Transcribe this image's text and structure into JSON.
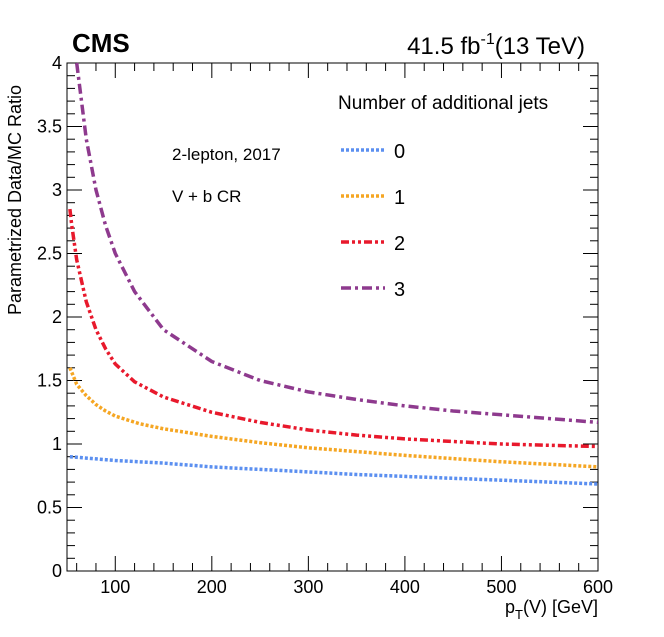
{
  "chart_data": {
    "type": "line",
    "experiment": "CMS",
    "luminosity": {
      "value": "41.5 fb",
      "exponent": "-1",
      "energy": "(13 TeV)"
    },
    "xlabel": {
      "main": "p",
      "sub": "T",
      "rest": "(V) [GeV]"
    },
    "ylabel": "Parametrized Data/MC Ratio",
    "xlim": [
      50,
      600
    ],
    "ylim": [
      0,
      4
    ],
    "xticks": [
      100,
      200,
      300,
      400,
      500,
      600
    ],
    "yticks": [
      0,
      0.5,
      1,
      1.5,
      2,
      2.5,
      3,
      3.5,
      4
    ],
    "annotations": {
      "channel": "2-lepton, 2017",
      "region": "V + b CR"
    },
    "legend_title": "Number of additional jets",
    "series": [
      {
        "name": "0",
        "color": "#5b8ff0",
        "dash": "dot",
        "x": [
          53,
          100,
          150,
          200,
          250,
          300,
          350,
          400,
          450,
          500,
          550,
          600
        ],
        "y": [
          0.9,
          0.87,
          0.85,
          0.82,
          0.8,
          0.78,
          0.76,
          0.745,
          0.73,
          0.715,
          0.7,
          0.685
        ]
      },
      {
        "name": "1",
        "color": "#f5a623",
        "dash": "dot",
        "x": [
          53,
          60,
          70,
          80,
          90,
          100,
          125,
          150,
          200,
          250,
          300,
          350,
          400,
          450,
          500,
          550,
          600
        ],
        "y": [
          1.6,
          1.47,
          1.38,
          1.31,
          1.26,
          1.22,
          1.16,
          1.12,
          1.06,
          1.01,
          0.97,
          0.94,
          0.91,
          0.885,
          0.86,
          0.84,
          0.82
        ]
      },
      {
        "name": "2",
        "color": "#e8192c",
        "dash": "dashdotdot",
        "x": [
          53,
          55,
          60,
          70,
          80,
          90,
          100,
          120,
          150,
          200,
          250,
          300,
          350,
          400,
          450,
          500,
          550,
          600
        ],
        "y": [
          2.85,
          2.72,
          2.45,
          2.12,
          1.9,
          1.75,
          1.63,
          1.49,
          1.37,
          1.25,
          1.17,
          1.11,
          1.07,
          1.04,
          1.02,
          1.0,
          0.99,
          0.98
        ]
      },
      {
        "name": "3",
        "color": "#8e3a8e",
        "dash": "dashdot",
        "x": [
          60,
          65,
          70,
          80,
          90,
          100,
          120,
          150,
          200,
          250,
          300,
          350,
          400,
          450,
          500,
          550,
          600
        ],
        "y": [
          4.0,
          3.7,
          3.4,
          3.0,
          2.72,
          2.5,
          2.2,
          1.9,
          1.65,
          1.5,
          1.41,
          1.35,
          1.3,
          1.26,
          1.23,
          1.2,
          1.17
        ]
      }
    ]
  }
}
